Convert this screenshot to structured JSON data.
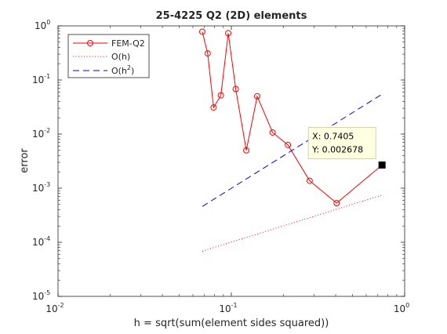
{
  "chart_data": {
    "type": "line",
    "title": "25-4225 Q2 (2D) elements",
    "xlabel": "h = sqrt(sum(element sides squared))",
    "ylabel": "error",
    "xscale": "log",
    "yscale": "log",
    "xlim": [
      0.01,
      1
    ],
    "ylim": [
      1e-05,
      1
    ],
    "x_ticks": [
      {
        "value": 0.01,
        "base": "10",
        "exp": "-2"
      },
      {
        "value": 0.1,
        "base": "10",
        "exp": "-1"
      },
      {
        "value": 1,
        "base": "10",
        "exp": "0"
      }
    ],
    "y_ticks": [
      {
        "value": 1e-05,
        "base": "10",
        "exp": "-5"
      },
      {
        "value": 0.0001,
        "base": "10",
        "exp": "-4"
      },
      {
        "value": 0.001,
        "base": "10",
        "exp": "-3"
      },
      {
        "value": 0.01,
        "base": "10",
        "exp": "-2"
      },
      {
        "value": 0.1,
        "base": "10",
        "exp": "-1"
      },
      {
        "value": 1,
        "base": "10",
        "exp": "0"
      }
    ],
    "grid": false,
    "legend_position": "top-left",
    "series": [
      {
        "name": "FEM-Q2",
        "color": "#ff0000",
        "style": "solid",
        "marker": "circle",
        "x": [
          0.068,
          0.073,
          0.079,
          0.087,
          0.096,
          0.106,
          0.122,
          0.141,
          0.173,
          0.212,
          0.283,
          0.405,
          0.7405
        ],
        "y": [
          0.78,
          0.31,
          0.031,
          0.052,
          0.73,
          0.068,
          0.005,
          0.05,
          0.0107,
          0.0063,
          0.00137,
          0.00053,
          0.002678
        ]
      },
      {
        "name": "O(h)",
        "color": "#ff0000",
        "style": "dotted",
        "marker": "none",
        "x": [
          0.068,
          0.7405
        ],
        "y": [
          6.85e-05,
          0.000746
        ]
      },
      {
        "name": "O(h",
        "name_sup": "2",
        "name_suffix": ")",
        "color": "#0000ff",
        "style": "dashed",
        "marker": "none",
        "x": [
          0.068,
          0.7405
        ],
        "y": [
          0.00046,
          0.0545
        ]
      }
    ],
    "datatip": {
      "x": 0.7405,
      "y": 0.002678,
      "x_text": "X: 0.7405",
      "y_text": "Y: 0.002678"
    }
  }
}
